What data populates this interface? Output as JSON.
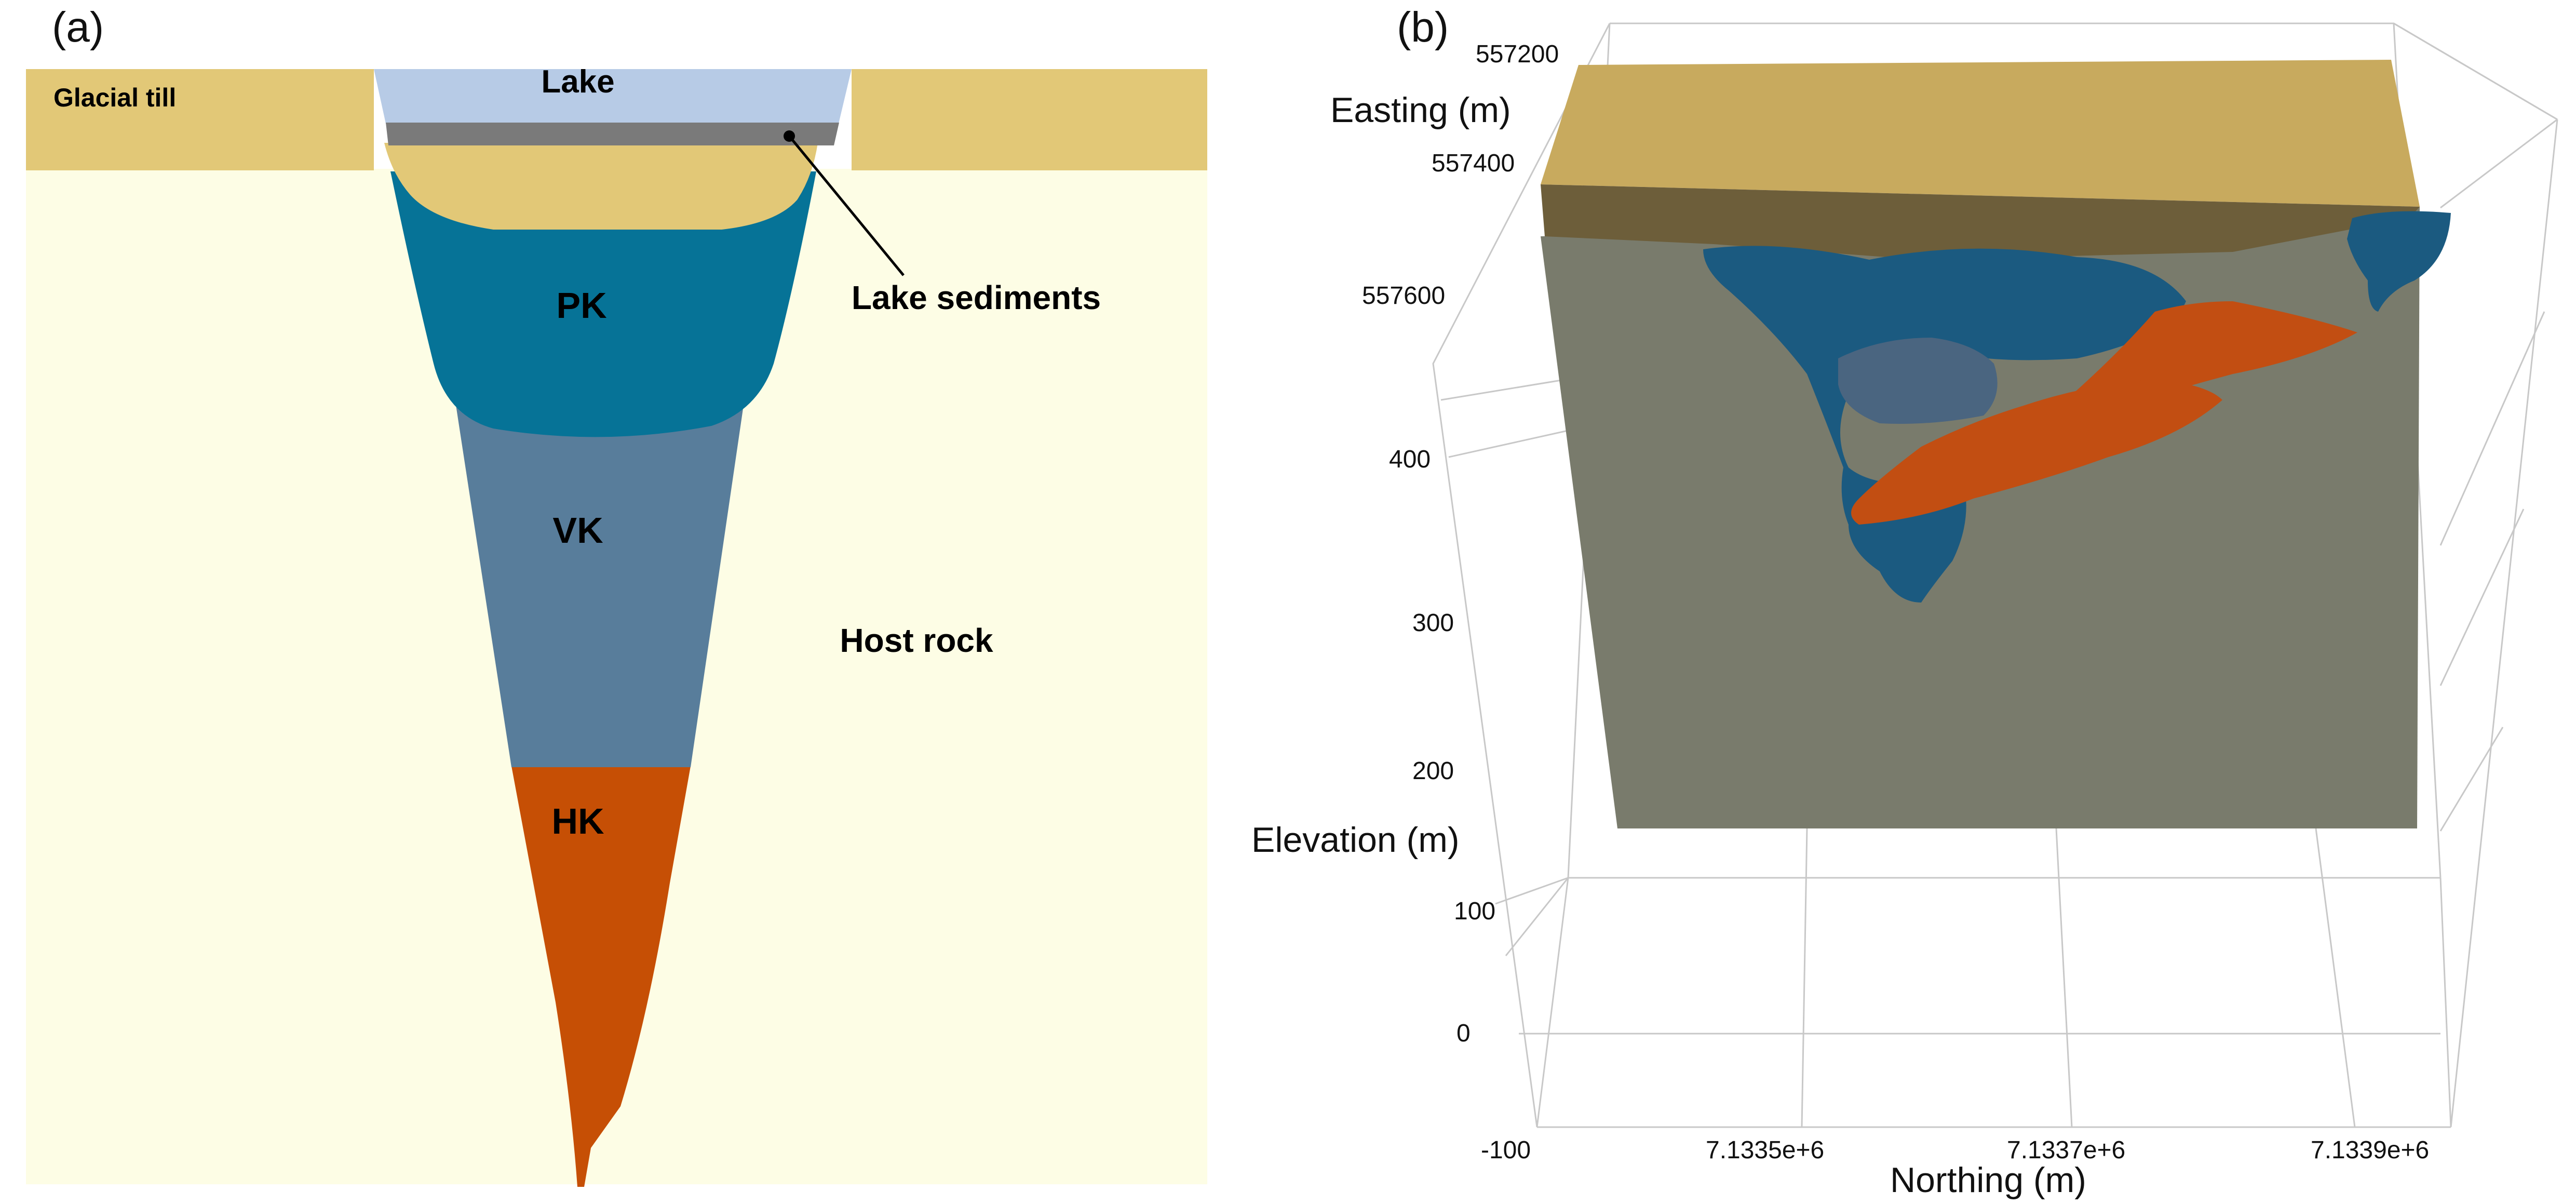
{
  "panel_a": {
    "label": "(a)",
    "units": {
      "glacial_till": "Glacial till",
      "lake": "Lake",
      "lake_sediments": "Lake sediments",
      "pk": "PK",
      "vk": "VK",
      "host_rock": "Host rock",
      "hk": "HK"
    }
  },
  "panel_b": {
    "label": "(b)",
    "axes": {
      "easting": {
        "title": "Easting (m)",
        "ticks": [
          "557200",
          "557400",
          "557600"
        ]
      },
      "elevation": {
        "title": "Elevation (m)",
        "ticks": [
          "400",
          "300",
          "200",
          "100",
          "0",
          "-100"
        ]
      },
      "northing": {
        "title": "Northing (m)",
        "ticks": [
          "7.1335e+6",
          "7.1337e+6",
          "7.1339e+6"
        ]
      }
    }
  },
  "colors": {
    "glacial_till": "#e2c877",
    "host_rock": "#fdfde5",
    "lake": "#b7cbe6",
    "lake_sediments": "#7a7a7a",
    "pk": "#067397",
    "vk": "#587d9b",
    "hk": "#c64f05",
    "block_front": "#797b6c",
    "block_top": "#c8aa5e",
    "block_till_front": "#6d5e3a",
    "pk_3d": "#1b5a80",
    "vk_3d": "#4a6580",
    "hk_3d": "#c24e12"
  }
}
